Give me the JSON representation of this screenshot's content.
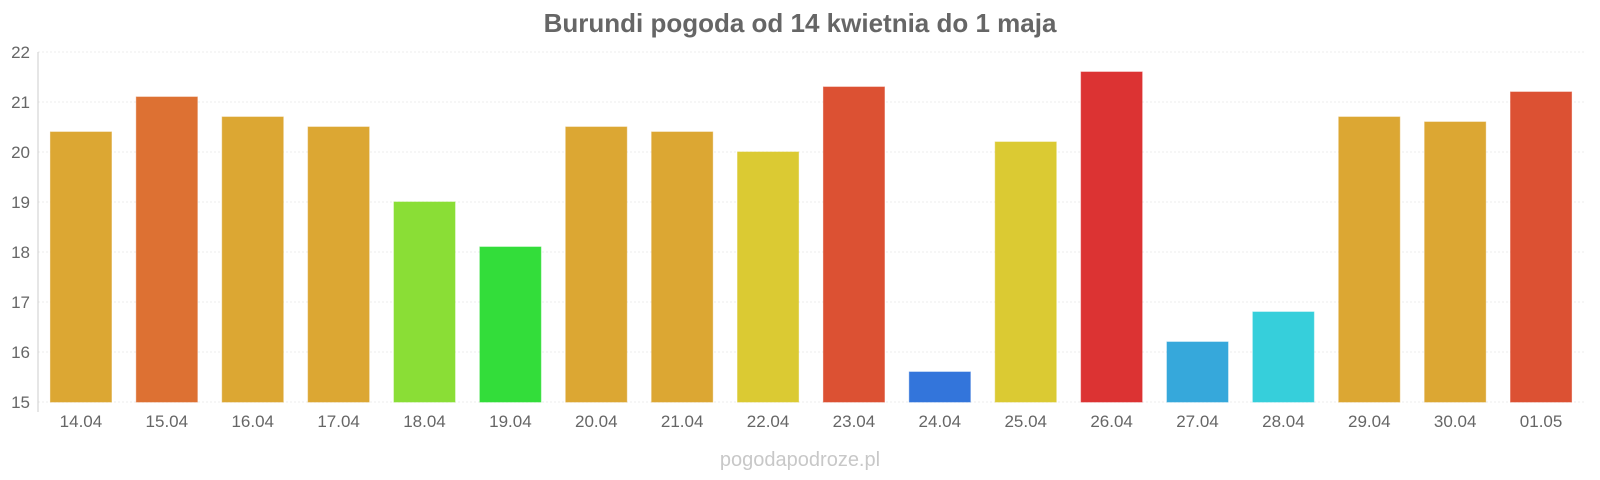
{
  "chart_data": {
    "type": "bar",
    "title": "Burundi pogoda od 14 kwietnia do 1 maja",
    "categories": [
      "14.04",
      "15.04",
      "16.04",
      "17.04",
      "18.04",
      "19.04",
      "20.04",
      "21.04",
      "22.04",
      "23.04",
      "24.04",
      "25.04",
      "26.04",
      "27.04",
      "28.04",
      "29.04",
      "30.04",
      "01.05"
    ],
    "values": [
      20.4,
      21.1,
      20.7,
      20.5,
      19.0,
      18.1,
      20.5,
      20.4,
      20.0,
      21.3,
      15.6,
      20.2,
      21.6,
      16.2,
      16.8,
      20.7,
      20.6,
      21.2
    ],
    "colors": [
      "#dca733",
      "#dd7133",
      "#dca733",
      "#dca733",
      "#8ade36",
      "#33dd3a",
      "#dca733",
      "#dca733",
      "#dbca33",
      "#dc5133",
      "#3375db",
      "#dbca33",
      "#dc3333",
      "#36a8db",
      "#36cfdb",
      "#dca733",
      "#dca733",
      "#dc5133"
    ],
    "ylim": [
      15,
      22
    ],
    "yticks": [
      15,
      16,
      17,
      18,
      19,
      20,
      21,
      22
    ],
    "grid": true,
    "legend": "none",
    "xlabel": "",
    "ylabel": ""
  },
  "footer": {
    "watermark": "pogodapodroze.pl"
  }
}
